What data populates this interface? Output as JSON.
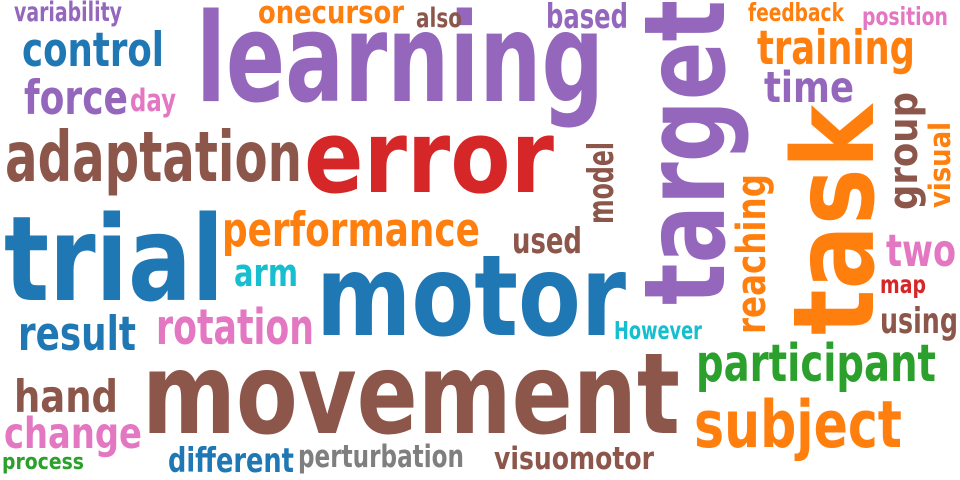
{
  "word_cloud": {
    "words": [
      {
        "text": "learning",
        "color": "#9467bd",
        "orientation": "horizontal"
      },
      {
        "text": "error",
        "color": "#d62728",
        "orientation": "horizontal"
      },
      {
        "text": "trial",
        "color": "#1f77b4",
        "orientation": "horizontal"
      },
      {
        "text": "motor",
        "color": "#1f77b4",
        "orientation": "horizontal"
      },
      {
        "text": "movement",
        "color": "#8c564b",
        "orientation": "horizontal"
      },
      {
        "text": "task",
        "color": "#ff7f0e",
        "orientation": "vertical"
      },
      {
        "text": "target",
        "color": "#9467bd",
        "orientation": "vertical"
      },
      {
        "text": "adaptation",
        "color": "#8c564b",
        "orientation": "horizontal"
      },
      {
        "text": "control",
        "color": "#1f77b4",
        "orientation": "horizontal"
      },
      {
        "text": "force",
        "color": "#9467bd",
        "orientation": "horizontal"
      },
      {
        "text": "day",
        "color": "#e377c2",
        "orientation": "horizontal"
      },
      {
        "text": "variability",
        "color": "#9467bd",
        "orientation": "horizontal"
      },
      {
        "text": "onecursor",
        "color": "#ff7f0e",
        "orientation": "horizontal"
      },
      {
        "text": "also",
        "color": "#8c564b",
        "orientation": "horizontal"
      },
      {
        "text": "based",
        "color": "#9467bd",
        "orientation": "horizontal"
      },
      {
        "text": "feedback",
        "color": "#ff7f0e",
        "orientation": "horizontal"
      },
      {
        "text": "position",
        "color": "#e377c2",
        "orientation": "horizontal"
      },
      {
        "text": "training",
        "color": "#ff7f0e",
        "orientation": "horizontal"
      },
      {
        "text": "time",
        "color": "#9467bd",
        "orientation": "horizontal"
      },
      {
        "text": "performance",
        "color": "#ff7f0e",
        "orientation": "horizontal"
      },
      {
        "text": "used",
        "color": "#8c564b",
        "orientation": "horizontal"
      },
      {
        "text": "model",
        "color": "#8c564b",
        "orientation": "vertical"
      },
      {
        "text": "arm",
        "color": "#17becf",
        "orientation": "horizontal"
      },
      {
        "text": "rotation",
        "color": "#e377c2",
        "orientation": "horizontal"
      },
      {
        "text": "result",
        "color": "#1f77b4",
        "orientation": "horizontal"
      },
      {
        "text": "However",
        "color": "#17becf",
        "orientation": "horizontal"
      },
      {
        "text": "reaching",
        "color": "#ff7f0e",
        "orientation": "vertical"
      },
      {
        "text": "group",
        "color": "#8c564b",
        "orientation": "vertical"
      },
      {
        "text": "visual",
        "color": "#ff7f0e",
        "orientation": "vertical"
      },
      {
        "text": "two",
        "color": "#e377c2",
        "orientation": "horizontal"
      },
      {
        "text": "map",
        "color": "#d62728",
        "orientation": "horizontal"
      },
      {
        "text": "using",
        "color": "#8c564b",
        "orientation": "horizontal"
      },
      {
        "text": "participant",
        "color": "#2ca02c",
        "orientation": "horizontal"
      },
      {
        "text": "subject",
        "color": "#ff7f0e",
        "orientation": "horizontal"
      },
      {
        "text": "hand",
        "color": "#8c564b",
        "orientation": "horizontal"
      },
      {
        "text": "change",
        "color": "#e377c2",
        "orientation": "horizontal"
      },
      {
        "text": "process",
        "color": "#2ca02c",
        "orientation": "horizontal"
      },
      {
        "text": "different",
        "color": "#1f77b4",
        "orientation": "horizontal"
      },
      {
        "text": "perturbation",
        "color": "#7f7f7f",
        "orientation": "horizontal"
      },
      {
        "text": "visuomotor",
        "color": "#8c564b",
        "orientation": "horizontal"
      }
    ]
  }
}
